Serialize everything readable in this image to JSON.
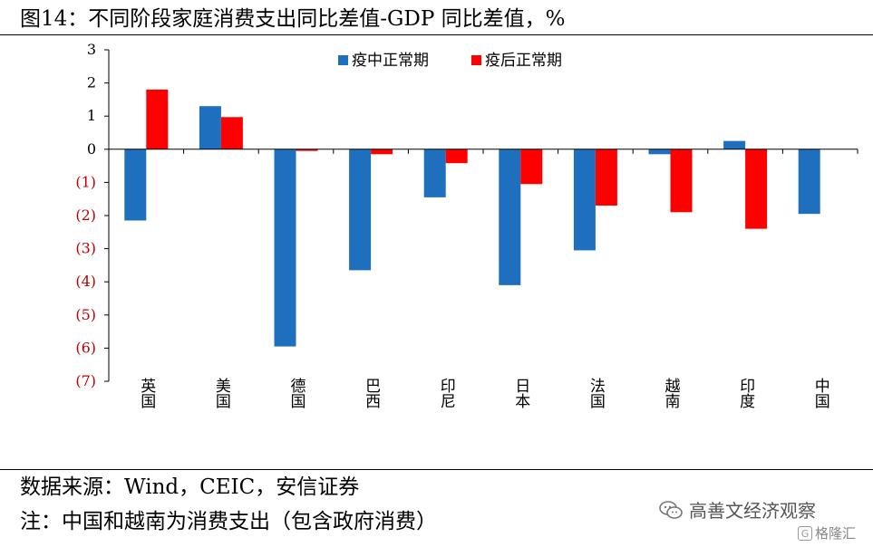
{
  "title": "图14：不同阶段家庭消费支出同比差值-GDP 同比差值，%",
  "source": "数据来源：Wind，CEIC，安信证券",
  "note": "注：中国和越南为消费支出（包含政府消费）",
  "watermark": "高善文经济观察",
  "logo_text": "格隆汇",
  "colors": {
    "series1": "#1f6fbf",
    "series2": "#ff0000",
    "negative_tick": "#c00000"
  },
  "chart_data": {
    "type": "bar",
    "categories": [
      "英国",
      "美国",
      "德国",
      "巴西",
      "印尼",
      "日本",
      "法国",
      "越南",
      "印度",
      "中国"
    ],
    "series": [
      {
        "name": "疫中正常期",
        "values": [
          -2.15,
          1.3,
          -5.95,
          -3.65,
          -1.45,
          -4.1,
          -3.05,
          -0.15,
          0.25,
          -1.95
        ]
      },
      {
        "name": "疫后正常期",
        "values": [
          1.8,
          0.97,
          -0.05,
          -0.15,
          -0.42,
          -1.05,
          -1.7,
          -1.9,
          -2.4,
          null
        ]
      }
    ],
    "ylim": [
      -7,
      3
    ],
    "yticks": [
      3,
      2,
      1,
      0,
      -1,
      -2,
      -3,
      -4,
      -5,
      -6,
      -7
    ],
    "ytick_labels": [
      "3",
      "2",
      "1",
      "0",
      "(1)",
      "(2)",
      "(3)",
      "(4)",
      "(5)",
      "(6)",
      "(7)"
    ],
    "legend_position": "top-center",
    "grid": false,
    "xlabel": "",
    "ylabel": ""
  }
}
